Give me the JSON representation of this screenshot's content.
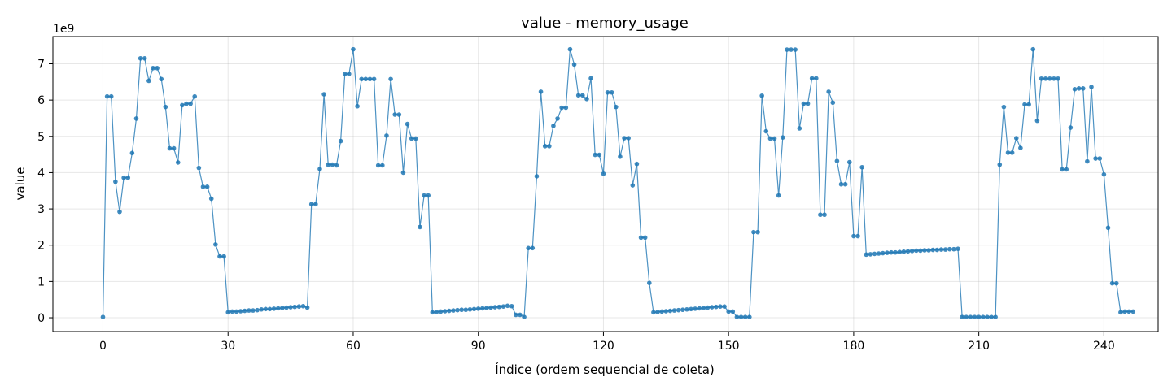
{
  "chart_data": {
    "type": "line",
    "title": "value - memory_usage",
    "xlabel": "Índice (ordem sequencial de coleta)",
    "ylabel": "value",
    "y_scale_label": "1e9",
    "xlim": [
      -12,
      253
    ],
    "ylim": [
      -0.38,
      7.75
    ],
    "x_ticks": [
      0,
      30,
      60,
      90,
      120,
      150,
      180,
      210,
      240
    ],
    "y_ticks": [
      0,
      1,
      2,
      3,
      4,
      5,
      6,
      7
    ],
    "grid": true,
    "markers": true,
    "color": "#1f77b4",
    "series": [
      {
        "y_unit": "1e9",
        "values": [
          0.02,
          6.1,
          6.1,
          3.75,
          2.92,
          3.86,
          3.86,
          4.54,
          5.49,
          7.15,
          7.15,
          6.53,
          6.88,
          6.88,
          6.58,
          5.81,
          4.67,
          4.67,
          4.28,
          5.86,
          5.9,
          5.9,
          6.1,
          4.13,
          3.61,
          3.61,
          3.28,
          2.02,
          1.69,
          1.69,
          0.15,
          0.17,
          0.17,
          0.18,
          0.19,
          0.2,
          0.2,
          0.21,
          0.23,
          0.24,
          0.24,
          0.25,
          0.26,
          0.27,
          0.28,
          0.29,
          0.3,
          0.31,
          0.32,
          0.28,
          3.13,
          3.13,
          4.1,
          6.16,
          4.22,
          4.22,
          4.2,
          4.87,
          6.72,
          6.72,
          7.4,
          5.83,
          6.58,
          6.58,
          6.58,
          6.58,
          4.2,
          4.2,
          5.02,
          6.58,
          5.6,
          5.6,
          4.0,
          5.34,
          4.94,
          4.94,
          2.5,
          3.37,
          3.37,
          0.15,
          0.16,
          0.17,
          0.18,
          0.19,
          0.2,
          0.21,
          0.22,
          0.22,
          0.23,
          0.24,
          0.25,
          0.26,
          0.27,
          0.28,
          0.29,
          0.3,
          0.31,
          0.33,
          0.32,
          0.08,
          0.08,
          0.02,
          1.92,
          1.92,
          3.9,
          6.23,
          4.73,
          4.73,
          5.29,
          5.49,
          5.79,
          5.79,
          7.4,
          6.98,
          6.13,
          6.13,
          6.03,
          6.6,
          4.49,
          4.49,
          3.97,
          6.21,
          6.21,
          5.81,
          4.44,
          4.95,
          4.95,
          3.65,
          4.24,
          2.21,
          2.21,
          0.96,
          0.15,
          0.16,
          0.17,
          0.18,
          0.19,
          0.2,
          0.21,
          0.22,
          0.23,
          0.24,
          0.25,
          0.26,
          0.27,
          0.28,
          0.29,
          0.3,
          0.31,
          0.31,
          0.17,
          0.17,
          0.02,
          0.02,
          0.02,
          0.02,
          2.36,
          2.36,
          6.12,
          5.14,
          4.94,
          4.94,
          3.37,
          4.97,
          7.39,
          7.39,
          7.39,
          5.22,
          5.9,
          5.9,
          6.6,
          6.6,
          2.84,
          2.84,
          6.23,
          5.93,
          4.32,
          3.68,
          3.68,
          4.29,
          2.25,
          2.25,
          4.15,
          1.74,
          1.75,
          1.76,
          1.77,
          1.78,
          1.79,
          1.8,
          1.8,
          1.81,
          1.82,
          1.83,
          1.84,
          1.85,
          1.85,
          1.86,
          1.86,
          1.87,
          1.87,
          1.88,
          1.88,
          1.89,
          1.89,
          1.9,
          0.02,
          0.02,
          0.02,
          0.02,
          0.02,
          0.02,
          0.02,
          0.02,
          0.02,
          4.22,
          5.81,
          4.55,
          4.55,
          4.95,
          4.68,
          5.88,
          5.88,
          7.4,
          5.43,
          6.59,
          6.59,
          6.59,
          6.59,
          6.59,
          4.09,
          4.09,
          5.24,
          6.3,
          6.32,
          6.32,
          4.31,
          6.36,
          4.39,
          4.39,
          3.95,
          2.48,
          0.95,
          0.95,
          0.15,
          0.17,
          0.17,
          0.17
        ]
      }
    ]
  }
}
